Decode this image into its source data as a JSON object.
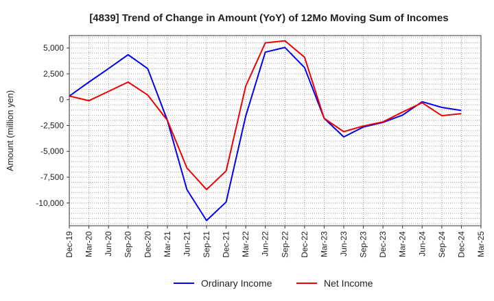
{
  "chart_data": {
    "type": "line",
    "title": "[4839]  Trend of Change in Amount (YoY) of 12Mo Moving Sum of Incomes",
    "xlabel": "",
    "ylabel": "Amount (million yen)",
    "categories": [
      "Dec-19",
      "Mar-20",
      "Jun-20",
      "Sep-20",
      "Dec-20",
      "Mar-21",
      "Jun-21",
      "Sep-21",
      "Dec-21",
      "Mar-22",
      "Jun-22",
      "Sep-22",
      "Dec-22",
      "Mar-23",
      "Jun-23",
      "Sep-23",
      "Dec-23",
      "Mar-24",
      "Jun-24",
      "Sep-24",
      "Dec-24",
      "Mar-25"
    ],
    "yticks": [
      5000,
      2500,
      0,
      -2500,
      -5000,
      -7500,
      -10000
    ],
    "ytick_labels": [
      "5,000",
      "2,500",
      "0",
      "-2,500",
      "-5,000",
      "-7,500",
      "-10,000"
    ],
    "ylim": [
      -12200,
      6200
    ],
    "grid": true,
    "legend_position": "bottom",
    "series": [
      {
        "name": "Ordinary Income",
        "color": "#0000ee",
        "values": [
          350,
          1700,
          3000,
          4350,
          3000,
          -2000,
          -8700,
          -11700,
          -9900,
          -1600,
          4600,
          5050,
          3100,
          -1800,
          -3600,
          -2650,
          -2200,
          -1500,
          -200,
          -750,
          -1050,
          null
        ]
      },
      {
        "name": "Net Income",
        "color": "#ee0000",
        "values": [
          350,
          -100,
          800,
          1700,
          450,
          -2000,
          -6600,
          -8700,
          -6900,
          1300,
          5500,
          5700,
          4100,
          -1800,
          -3100,
          -2550,
          -2150,
          -1200,
          -300,
          -1550,
          -1350,
          null
        ]
      }
    ]
  }
}
